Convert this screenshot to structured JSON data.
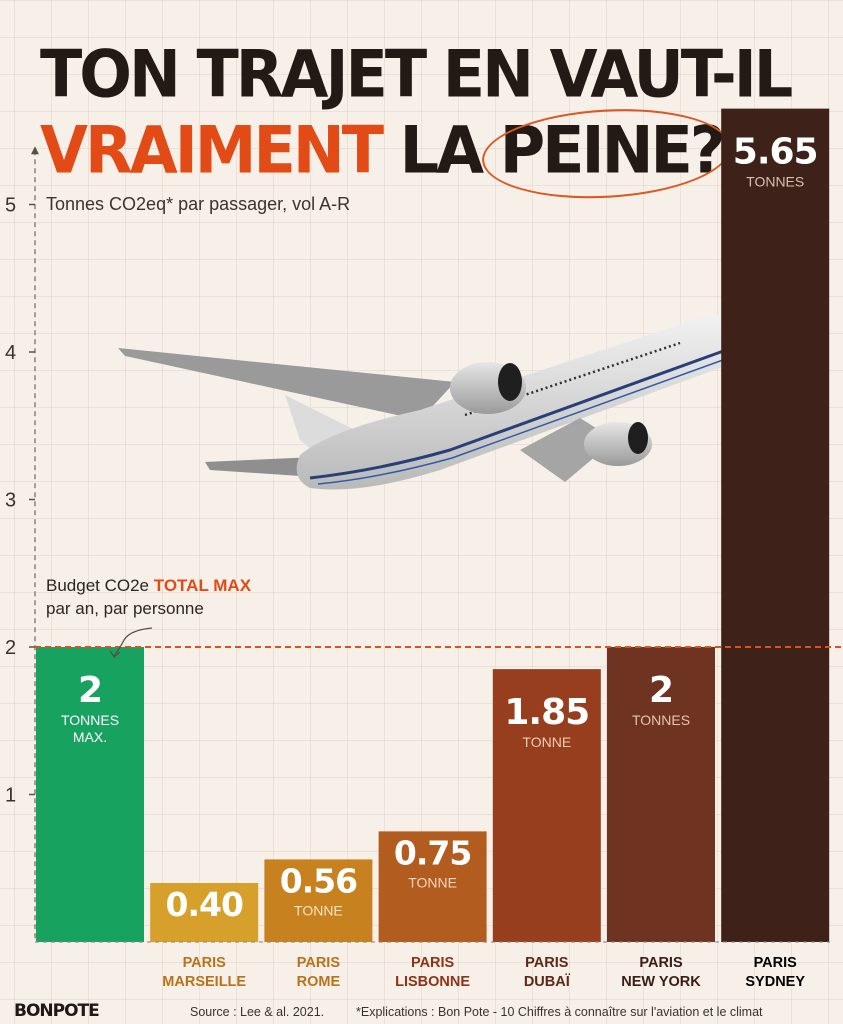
{
  "title": {
    "line1": "TON TRAJET EN VAUT-IL",
    "line2_highlight": "VRAIMENT",
    "line2_mid": "LA",
    "line2_circled": "PEINE?"
  },
  "subtitle": "Tonnes CO2eq* par passager, vol A-R",
  "budget_note": {
    "prefix": "Budget CO2e",
    "highlight": "TOTAL MAX",
    "line2": "par an, par personne"
  },
  "footer": {
    "brand": "BONPOTE",
    "source": "Source : Lee & al. 2021.",
    "explain": "*Explications : Bon Pote - 10 Chiffres à connaître sur l'aviation et le climat"
  },
  "colors": {
    "title_dark": "#231a15",
    "accent": "#e24a16",
    "budget_bar": "#17a35f",
    "background": "#f7f0e9"
  },
  "chart_data": {
    "type": "bar",
    "title": "TON TRAJET EN VAUT-IL VRAIMENT LA PEINE?",
    "ylabel": "Tonnes CO2eq* par passager, vol A-R",
    "ylim": [
      0,
      5.3
    ],
    "yticks": [
      1,
      2,
      3,
      4,
      5
    ],
    "reference_line": {
      "value": 2,
      "label": "Budget CO2e TOTAL MAX par an, par personne"
    },
    "grid": true,
    "bars": [
      {
        "label_lines": [],
        "value": 2,
        "value_label": "2",
        "unit_lines": [
          "TONNES",
          "MAX."
        ],
        "color": "#17a35f",
        "text_color": "#ffffff",
        "unit_color": "#ffffff"
      },
      {
        "label_lines": [
          "PARIS",
          "MARSEILLE"
        ],
        "value": 0.4,
        "value_label": "0.40",
        "unit_lines": [],
        "color": "#d6a02a",
        "text_color": "#ffffff",
        "unit_color": "#fbe7c4"
      },
      {
        "label_lines": [
          "PARIS",
          "ROME"
        ],
        "value": 0.56,
        "value_label": "0.56",
        "unit_lines": [
          "TONNE"
        ],
        "color": "#c7811f",
        "text_color": "#ffffff",
        "unit_color": "#fbe3c6"
      },
      {
        "label_lines": [
          "PARIS",
          "LISBONNE"
        ],
        "value": 0.75,
        "value_label": "0.75",
        "unit_lines": [
          "TONNE"
        ],
        "color": "#b25c1f",
        "text_color": "#ffffff",
        "unit_color": "#f6d7bd"
      },
      {
        "label_lines": [
          "PARIS",
          "DUBAÏ"
        ],
        "value": 1.85,
        "value_label": "1.85",
        "unit_lines": [
          "TONNE"
        ],
        "color": "#963e1d",
        "text_color": "#ffffff",
        "unit_color": "#f1cdb8"
      },
      {
        "label_lines": [
          "PARIS",
          "NEW YORK"
        ],
        "value": 2,
        "value_label": "2",
        "unit_lines": [
          "TONNES"
        ],
        "color": "#6f3421",
        "text_color": "#ffffff",
        "unit_color": "#e6c3b3"
      },
      {
        "label_lines": [
          "PARIS",
          "SYDNEY"
        ],
        "value": 5.65,
        "value_label": "5.65",
        "unit_lines": [
          "TONNES"
        ],
        "color": "#3e2219",
        "text_color": "#ffffff",
        "unit_color": "#d9c0b3"
      }
    ],
    "category_label_colors": [
      "#b8731a",
      "#b8731a",
      "#b8731a",
      "#8a3516",
      "#5e2818",
      "#3a1d15"
    ]
  }
}
